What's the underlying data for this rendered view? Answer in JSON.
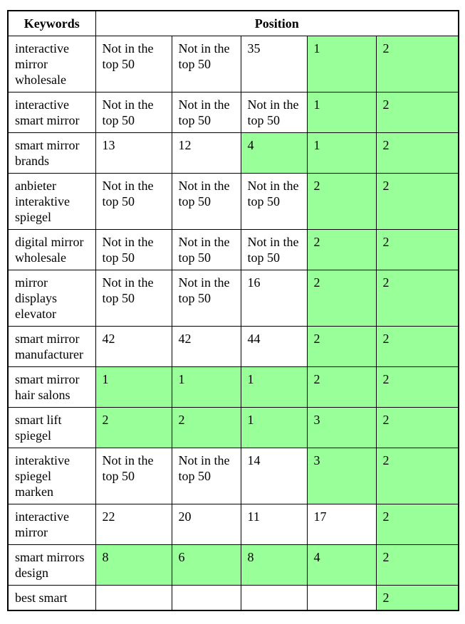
{
  "colors": {
    "highlight_green": "#99ff99",
    "border": "#000000",
    "background": "#ffffff"
  },
  "table": {
    "header": {
      "keywords": "Keywords",
      "position": "Position"
    },
    "position_columns": 5,
    "rows": [
      {
        "keyword": "interactive mirror wholesale",
        "positions": [
          "Not in the top 50",
          "Not in the top 50",
          "35",
          "1",
          "2"
        ],
        "highlighted": [
          false,
          false,
          false,
          true,
          true
        ]
      },
      {
        "keyword": "interactive smart mirror",
        "positions": [
          "Not in the top 50",
          "Not in the top 50",
          "Not in the top 50",
          "1",
          "2"
        ],
        "highlighted": [
          false,
          false,
          false,
          true,
          true
        ]
      },
      {
        "keyword": "smart mirror brands",
        "positions": [
          "13",
          "12",
          "4",
          "1",
          "2"
        ],
        "highlighted": [
          false,
          false,
          true,
          true,
          true
        ]
      },
      {
        "keyword": "anbieter interaktive spiegel",
        "positions": [
          "Not in the top 50",
          "Not in the top 50",
          "Not in the top 50",
          "2",
          "2"
        ],
        "highlighted": [
          false,
          false,
          false,
          true,
          true
        ]
      },
      {
        "keyword": "digital mirror wholesale",
        "positions": [
          "Not in the top 50",
          "Not in the top 50",
          "Not in the top 50",
          "2",
          "2"
        ],
        "highlighted": [
          false,
          false,
          false,
          true,
          true
        ]
      },
      {
        "keyword": "mirror displays elevator",
        "positions": [
          "Not in the top 50",
          "Not in the top 50",
          "16",
          "2",
          "2"
        ],
        "highlighted": [
          false,
          false,
          false,
          true,
          true
        ]
      },
      {
        "keyword": "smart mirror manufacturer",
        "positions": [
          "42",
          "42",
          "44",
          "2",
          "2"
        ],
        "highlighted": [
          false,
          false,
          false,
          true,
          true
        ]
      },
      {
        "keyword": "smart mirror hair salons",
        "positions": [
          "1",
          "1",
          "1",
          "2",
          "2"
        ],
        "highlighted": [
          true,
          true,
          true,
          true,
          true
        ]
      },
      {
        "keyword": "smart lift spiegel",
        "positions": [
          "2",
          "2",
          "1",
          "3",
          "2"
        ],
        "highlighted": [
          true,
          true,
          true,
          true,
          true
        ]
      },
      {
        "keyword": "interaktive spiegel marken",
        "positions": [
          "Not in the top 50",
          "Not in the top 50",
          "14",
          "3",
          "2"
        ],
        "highlighted": [
          false,
          false,
          false,
          true,
          true
        ]
      },
      {
        "keyword": "interactive mirror",
        "positions": [
          "22",
          "20",
          "11",
          "17",
          "2"
        ],
        "highlighted": [
          false,
          false,
          false,
          false,
          true
        ]
      },
      {
        "keyword": "smart mirrors design",
        "positions": [
          "8",
          "6",
          "8",
          "4",
          "2"
        ],
        "highlighted": [
          true,
          true,
          true,
          true,
          true
        ]
      },
      {
        "keyword": "best smart",
        "positions": [
          "",
          "",
          "",
          "",
          "2"
        ],
        "highlighted": [
          false,
          false,
          false,
          false,
          true
        ]
      }
    ]
  }
}
